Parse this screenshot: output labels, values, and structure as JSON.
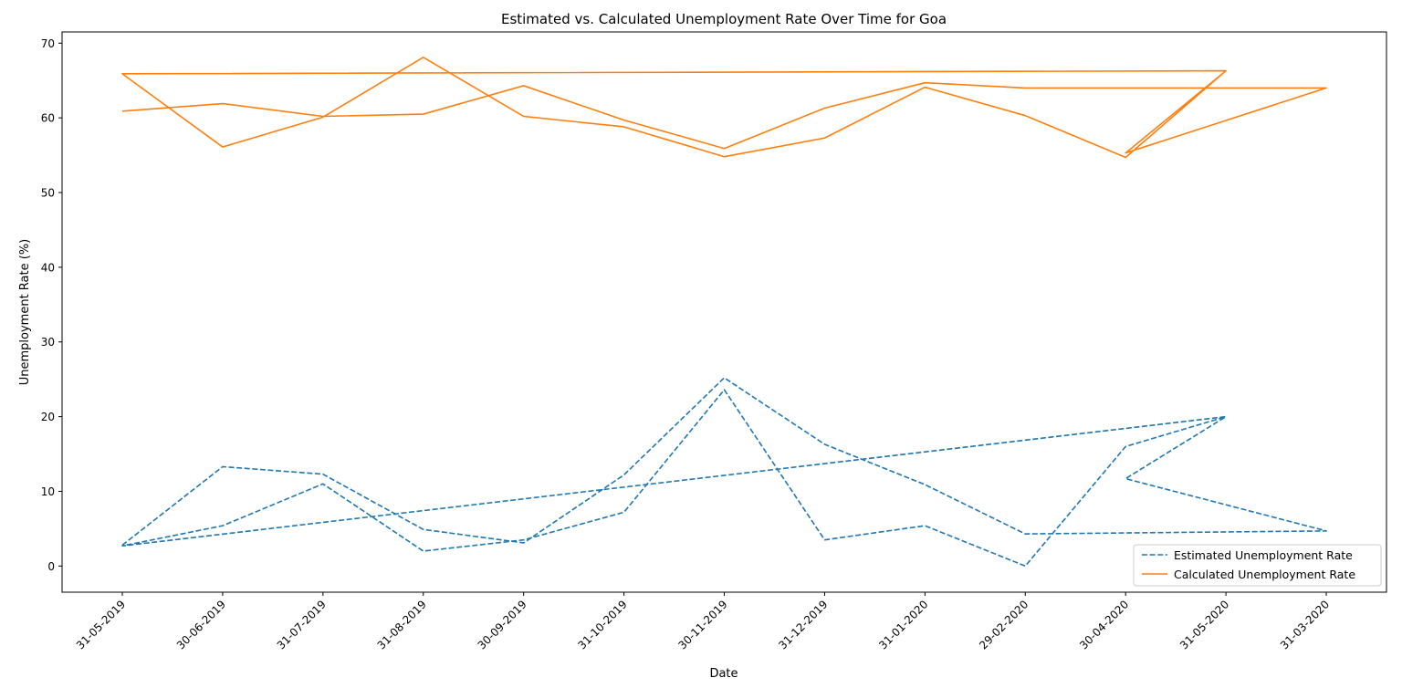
{
  "chart_data": {
    "type": "line",
    "title": "Estimated vs. Calculated Unemployment Rate Over Time for Goa",
    "xlabel": "Date",
    "ylabel": "Unemployment Rate (%)",
    "categories": [
      "31-05-2019",
      "30-06-2019",
      "31-07-2019",
      "31-08-2019",
      "30-09-2019",
      "31-10-2019",
      "30-11-2019",
      "31-12-2019",
      "31-01-2020",
      "29-02-2020",
      "30-04-2020",
      "31-05-2020",
      "31-03-2020"
    ],
    "yticks": [
      0,
      10,
      20,
      30,
      40,
      50,
      60,
      70
    ],
    "ylim": [
      -3.5,
      71.5
    ],
    "grid": false,
    "legend_position": "lower right",
    "series": [
      {
        "name": "Estimated Unemployment Rate",
        "style": "dashed",
        "color": "#1f77b4",
        "segments": [
          [
            {
              "x": "31-05-2019",
              "y": 2.8
            },
            {
              "x": "30-06-2019",
              "y": 13.3
            },
            {
              "x": "31-07-2019",
              "y": 12.3
            },
            {
              "x": "31-08-2019",
              "y": 4.9
            },
            {
              "x": "30-09-2019",
              "y": 3.1
            },
            {
              "x": "31-10-2019",
              "y": 12.2
            },
            {
              "x": "30-11-2019",
              "y": 25.2
            },
            {
              "x": "31-12-2019",
              "y": 16.3
            },
            {
              "x": "31-01-2020",
              "y": 10.9
            },
            {
              "x": "29-02-2020",
              "y": 4.3
            },
            {
              "x": "31-03-2020",
              "y": 4.7
            },
            {
              "x": "30-04-2020",
              "y": 11.7
            },
            {
              "x": "31-05-2020",
              "y": 20.0
            },
            {
              "x": "31-05-2019",
              "y": 2.7
            },
            {
              "x": "30-06-2019",
              "y": 5.4
            },
            {
              "x": "31-07-2019",
              "y": 11.0
            },
            {
              "x": "31-08-2019",
              "y": 2.0
            },
            {
              "x": "30-09-2019",
              "y": 3.5
            },
            {
              "x": "31-10-2019",
              "y": 7.2
            },
            {
              "x": "30-11-2019",
              "y": 23.6
            },
            {
              "x": "31-12-2019",
              "y": 3.5
            },
            {
              "x": "31-01-2020",
              "y": 5.4
            },
            {
              "x": "29-02-2020",
              "y": 0.0
            },
            {
              "x": "30-04-2020",
              "y": 16.0
            },
            {
              "x": "31-05-2020",
              "y": 20.0
            }
          ]
        ]
      },
      {
        "name": "Calculated Unemployment Rate",
        "style": "solid",
        "color": "#ff7f0e",
        "segments": [
          [
            {
              "x": "31-05-2019",
              "y": 60.9
            },
            {
              "x": "30-06-2019",
              "y": 61.9
            },
            {
              "x": "31-07-2019",
              "y": 60.2
            },
            {
              "x": "31-08-2019",
              "y": 60.5
            },
            {
              "x": "30-09-2019",
              "y": 64.3
            },
            {
              "x": "31-10-2019",
              "y": 59.7
            },
            {
              "x": "30-11-2019",
              "y": 55.9
            },
            {
              "x": "31-12-2019",
              "y": 61.3
            },
            {
              "x": "31-01-2020",
              "y": 64.7
            },
            {
              "x": "29-02-2020",
              "y": 64.0
            },
            {
              "x": "31-03-2020",
              "y": 64.0
            },
            {
              "x": "30-04-2020",
              "y": 55.3
            },
            {
              "x": "31-05-2020",
              "y": 66.3
            },
            {
              "x": "31-05-2019",
              "y": 65.9
            },
            {
              "x": "30-06-2019",
              "y": 56.1
            },
            {
              "x": "31-07-2019",
              "y": 60.1
            },
            {
              "x": "31-08-2019",
              "y": 68.1
            },
            {
              "x": "30-09-2019",
              "y": 60.2
            },
            {
              "x": "31-10-2019",
              "y": 58.8
            },
            {
              "x": "30-11-2019",
              "y": 54.8
            },
            {
              "x": "31-12-2019",
              "y": 57.3
            },
            {
              "x": "31-01-2020",
              "y": 64.1
            },
            {
              "x": "29-02-2020",
              "y": 60.3
            },
            {
              "x": "30-04-2020",
              "y": 54.7
            },
            {
              "x": "31-05-2020",
              "y": 66.3
            }
          ]
        ]
      }
    ]
  }
}
